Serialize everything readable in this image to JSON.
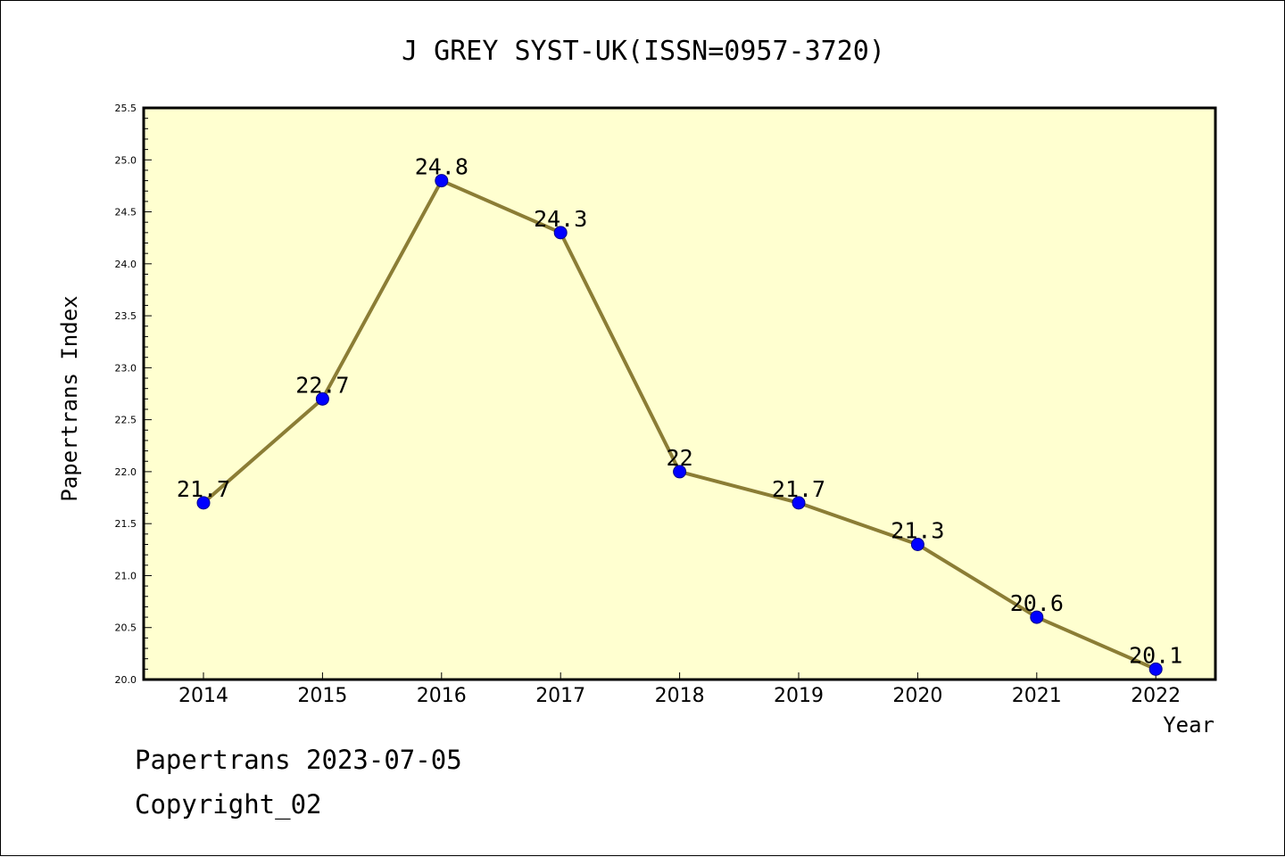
{
  "chart_data": {
    "type": "line",
    "title": "J GREY SYST-UK(ISSN=0957-3720)",
    "xlabel": "Year",
    "ylabel": "Papertrans Index",
    "x": [
      "2014",
      "2015",
      "2016",
      "2017",
      "2018",
      "2019",
      "2020",
      "2021",
      "2022"
    ],
    "series": [
      {
        "values": [
          21.7,
          22.7,
          24.8,
          24.3,
          22,
          21.7,
          21.3,
          20.6,
          20.1
        ],
        "labels": [
          "21.7",
          "22.7",
          "24.8",
          "24.3",
          "22",
          "21.7",
          "21.3",
          "20.6",
          "20.1"
        ]
      }
    ],
    "ylim": [
      20.0,
      25.5
    ],
    "yticks": [
      "20.0",
      "20.5",
      "21.0",
      "21.5",
      "22.0",
      "22.5",
      "23.0",
      "23.5",
      "24.0",
      "24.5",
      "25.0",
      "25.5"
    ],
    "grid": false,
    "colors": {
      "plot_background": "#ffffd0",
      "line": "#8b7d35",
      "marker": "#0000ff"
    }
  },
  "footer": {
    "line1": "Papertrans 2023-07-05",
    "line2": "Copyright_02"
  }
}
